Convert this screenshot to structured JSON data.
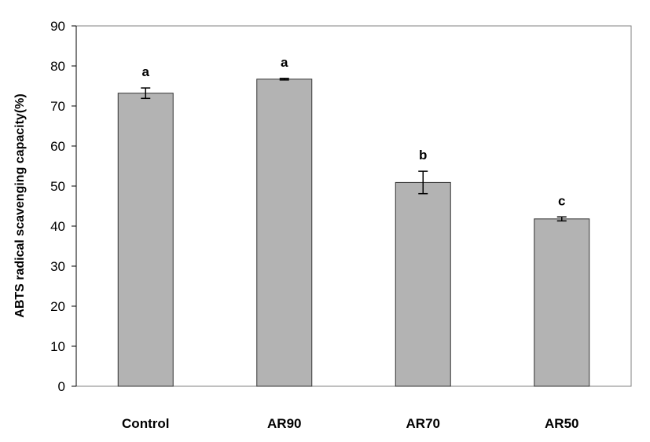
{
  "chart_data": {
    "type": "bar",
    "categories": [
      "Control",
      "AR90",
      "AR70",
      "AR50"
    ],
    "values": [
      73.2,
      76.7,
      50.9,
      41.8
    ],
    "errors": [
      1.3,
      0.2,
      2.8,
      0.5
    ],
    "significance": [
      "a",
      "a",
      "b",
      "c"
    ],
    "ylabel": "ABTS radical scavenging capacity(%)",
    "xlabel": "",
    "ylim": [
      0,
      90
    ],
    "yticks": [
      0,
      10,
      20,
      30,
      40,
      50,
      60,
      70,
      80,
      90
    ],
    "grid": false,
    "legend": "none",
    "bar_color": "#b3b3b3",
    "bar_edge_color": "#333333"
  }
}
